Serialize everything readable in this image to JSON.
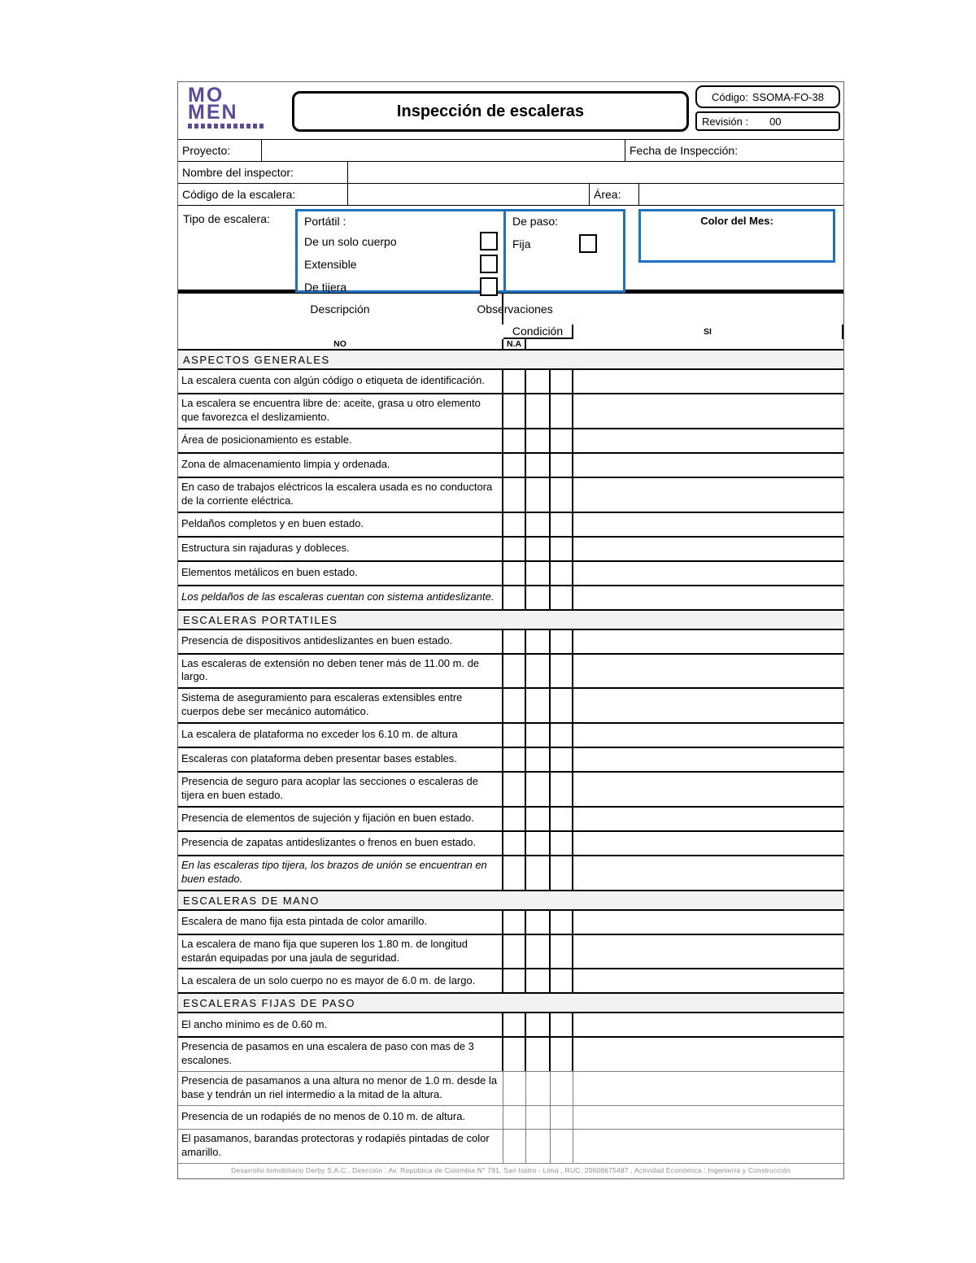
{
  "colors": {
    "accent_blue": "#1e72c4",
    "logo_purple": "#5a4b9e",
    "section_bg": "#f2f2f2"
  },
  "logo": {
    "line1": "MO",
    "line2": "MEN"
  },
  "title": "Inspección de escaleras",
  "meta": {
    "code_label": "Código:",
    "code_value": "SSOMA-FO-38",
    "revision_label": "Revisión :",
    "revision_value": "00"
  },
  "fields": {
    "project_label": "Proyecto:",
    "date_label": "Fecha de Inspección:",
    "inspector_label": "Nombre del inspector:",
    "ladder_code_label": "Código de la escalera:",
    "area_label": "Área:"
  },
  "type_section": {
    "label": "Tipo de escalera:",
    "portable": {
      "label": "Portátil :",
      "options": [
        "De un solo cuerpo",
        "Extensible",
        "De tijera"
      ]
    },
    "fixed": {
      "label": "De paso:",
      "options": [
        "Fija"
      ]
    },
    "month_color_label": "Color del Mes:"
  },
  "table": {
    "headers": {
      "description": "Descripción",
      "condition": "Condición",
      "condition_cols": [
        "SI",
        "NO",
        "N.A"
      ],
      "observations": "Observaciones"
    },
    "sections": [
      {
        "title": "ASPECTOS GENERALES",
        "items": [
          {
            "text": "La escalera cuenta con algún código o etiqueta de identificación."
          },
          {
            "text": "La escalera se encuentra libre de: aceite, grasa u otro elemento que favorezca el deslizamiento."
          },
          {
            "text": "Área de posicionamiento  es estable."
          },
          {
            "text": "Zona de almacenamiento limpia y ordenada."
          },
          {
            "text": "En caso de trabajos eléctricos la escalera usada es no conductora de la corriente eléctrica."
          },
          {
            "text": "Peldaños completos y en buen estado."
          },
          {
            "text": "Estructura sin rajaduras y dobleces."
          },
          {
            "text": "Elementos metálicos en buen estado."
          },
          {
            "text": "Los peldaños de las escaleras cuentan con sistema antideslizante.",
            "italic": true
          }
        ]
      },
      {
        "title": "ESCALERAS PORTATILES",
        "items": [
          {
            "text": "Presencia de dispositivos antideslizantes en buen estado."
          },
          {
            "text": "Las escaleras de extensión no deben tener más de 11.00 m. de largo."
          },
          {
            "text": "Sistema de aseguramiento para escaleras extensibles entre cuerpos debe ser mecánico automático."
          },
          {
            "text": "La escalera de plataforma no exceder los 6.10 m. de altura"
          },
          {
            "text": "Escaleras con plataforma deben presentar bases estables."
          },
          {
            "text": "Presencia de seguro para acoplar las secciones o escaleras de tijera en buen estado."
          },
          {
            "text": "Presencia de elementos de sujeción y fijación en buen estado."
          },
          {
            "text": "Presencia de zapatas antideslizantes o frenos en buen estado."
          },
          {
            "text": "En las escaleras tipo tijera, los brazos de unión se encuentran en buen estado.",
            "italic": true
          }
        ]
      },
      {
        "title": "ESCALERAS DE MANO",
        "items": [
          {
            "text": "Escalera de mano fija esta pintada de color amarillo."
          },
          {
            "text": "La escalera de mano fija que superen los 1.80 m. de longitud estarán equipadas por una jaula de seguridad."
          },
          {
            "text": "La escalera de un solo cuerpo no es mayor de 6.0 m. de largo."
          }
        ]
      },
      {
        "title": "ESCALERAS FIJAS DE PASO",
        "items": [
          {
            "text": "El ancho mínimo es de 0.60 m."
          },
          {
            "text": "Presencia de pasamos en una escalera de paso con mas de 3 escalones."
          },
          {
            "text": "Presencia de pasamanos a una altura no menor de 1.0 m. desde la base y tendrán un riel intermedio a la mitad de la altura.",
            "light": true
          },
          {
            "text": "Presencia de un rodapiés de no menos de 0.10 m. de altura.",
            "light": true
          },
          {
            "text": "El pasamanos, barandas protectoras y rodapiés pintadas de color amarillo.",
            "light": true
          }
        ]
      }
    ]
  },
  "footer": "Desarrollo Inmobiliario Derby S.A.C., Dirección : Av. República de Colombia N° 791,  San Isidro - Lima , RUC:  20608675487 ,  Actividad Económica :  Ingeniería y Construcción"
}
